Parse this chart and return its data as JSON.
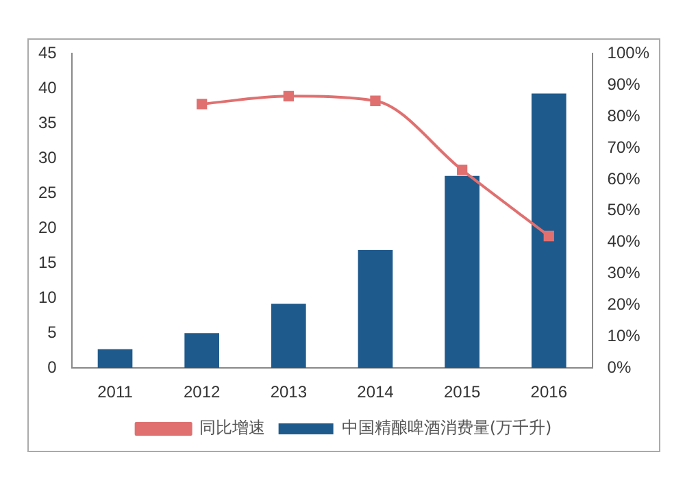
{
  "chart_data": {
    "type": "bar",
    "categories": [
      "2011",
      "2012",
      "2013",
      "2014",
      "2015",
      "2016"
    ],
    "series": [
      {
        "name": "中国精酿啤酒消费量(万千升)",
        "color": "#1f5a8c",
        "values": [
          2.7,
          5.0,
          9.2,
          16.9,
          27.5,
          39.3
        ]
      },
      {
        "name": "同比增速",
        "type": "line",
        "axis": "y2",
        "color": "#e07070",
        "marker": "square",
        "values": [
          null,
          84,
          86.5,
          85,
          63,
          42
        ]
      }
    ],
    "ylim": [
      0,
      45
    ],
    "yticks": [
      0,
      5,
      10,
      15,
      20,
      25,
      30,
      35,
      40,
      45
    ],
    "y2lim": [
      0,
      100
    ],
    "y2ticks": [
      {
        "value": 0,
        "label": "0%"
      },
      {
        "value": 10,
        "label": "10%"
      },
      {
        "value": 20,
        "label": "20%"
      },
      {
        "value": 30,
        "label": "30%"
      },
      {
        "value": 40,
        "label": "40%"
      },
      {
        "value": 50,
        "label": "50%"
      },
      {
        "value": 60,
        "label": "60%"
      },
      {
        "value": 70,
        "label": "70%"
      },
      {
        "value": 80,
        "label": "80%"
      },
      {
        "value": 90,
        "label": "90%"
      },
      {
        "value": 100,
        "label": "100%"
      }
    ],
    "grid": false,
    "legend": "bottom"
  }
}
